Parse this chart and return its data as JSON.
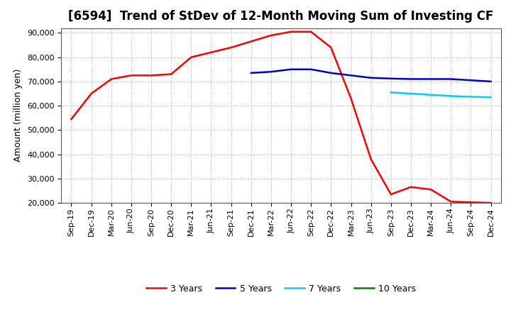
{
  "title": "[6594]  Trend of StDev of 12-Month Moving Sum of Investing CF",
  "ylabel": "Amount (million yen)",
  "background_color": "#ffffff",
  "plot_bg_color": "#ffffff",
  "grid_color": "#b0b0b0",
  "ylim": [
    20000,
    92000
  ],
  "yticks": [
    20000,
    30000,
    40000,
    50000,
    60000,
    70000,
    80000,
    90000
  ],
  "x_labels": [
    "Sep-19",
    "Dec-19",
    "Mar-20",
    "Jun-20",
    "Sep-20",
    "Dec-20",
    "Mar-21",
    "Jun-21",
    "Sep-21",
    "Dec-21",
    "Mar-22",
    "Jun-22",
    "Sep-22",
    "Dec-22",
    "Mar-23",
    "Jun-23",
    "Sep-23",
    "Dec-23",
    "Mar-24",
    "Jun-24",
    "Sep-24",
    "Dec-24"
  ],
  "series_3y": {
    "label": "3 Years",
    "color": "#ff0000",
    "x": [
      "Sep-19",
      "Dec-19",
      "Mar-20",
      "Jun-20",
      "Sep-20",
      "Dec-20",
      "Mar-21",
      "Jun-21",
      "Sep-21",
      "Dec-21",
      "Mar-22",
      "Jun-22",
      "Sep-22",
      "Dec-22",
      "Mar-23",
      "Jun-23",
      "Sep-23",
      "Dec-23",
      "Mar-24",
      "Jun-24",
      "Sep-24",
      "Dec-24"
    ],
    "y": [
      54500,
      65000,
      71000,
      72500,
      72500,
      73000,
      80000,
      82000,
      84000,
      86500,
      89000,
      90500,
      90500,
      84000,
      63000,
      38000,
      23500,
      26500,
      25500,
      20500,
      20200,
      20000
    ]
  },
  "series_5y": {
    "label": "5 Years",
    "color": "#0000cc",
    "x": [
      "Dec-21",
      "Mar-22",
      "Jun-22",
      "Sep-22",
      "Dec-22",
      "Mar-23",
      "Jun-23",
      "Sep-23",
      "Dec-23",
      "Mar-24",
      "Jun-24",
      "Sep-24",
      "Dec-24"
    ],
    "y": [
      73500,
      74000,
      75000,
      75000,
      73500,
      72500,
      71500,
      71200,
      71000,
      71000,
      71000,
      70500,
      70000
    ]
  },
  "series_7y": {
    "label": "7 Years",
    "color": "#00ccff",
    "x": [
      "Sep-23",
      "Dec-23",
      "Mar-24",
      "Jun-24",
      "Sep-24",
      "Dec-24"
    ],
    "y": [
      65500,
      65000,
      64500,
      64000,
      63700,
      63500
    ]
  },
  "series_10y": {
    "label": "10 Years",
    "color": "#008000",
    "x": [],
    "y": []
  },
  "title_fontsize": 12,
  "ylabel_fontsize": 9,
  "tick_fontsize": 8,
  "legend_fontsize": 9,
  "linewidth": 1.8
}
